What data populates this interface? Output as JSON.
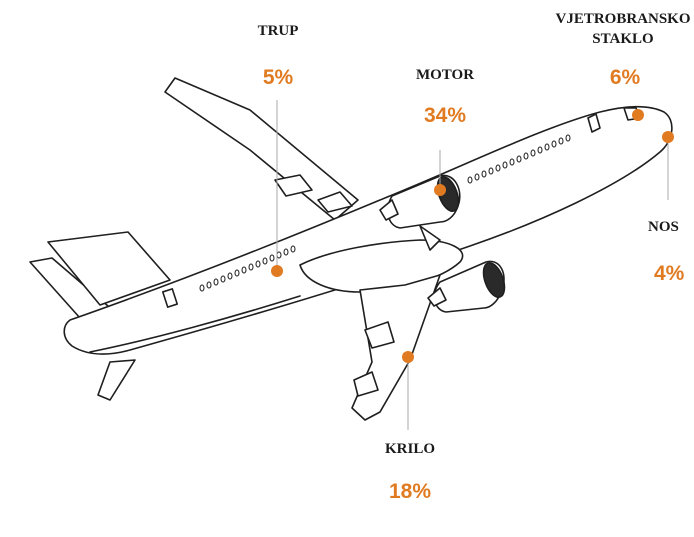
{
  "accent_color": "#e07b22",
  "outline_color": "#1f1f1f",
  "icons": [
    "airplane-outline",
    "orange-dot-marker"
  ],
  "parts": {
    "fuselage": {
      "label": "TRUP",
      "value": "5%"
    },
    "engine": {
      "label": "MOTOR",
      "value": "34%"
    },
    "windshield": {
      "label_line1": "VJETROBRANSKO",
      "label_line2": "STAKLO",
      "value": "6%"
    },
    "nose": {
      "label": "NOS",
      "value": "4%"
    },
    "wing": {
      "label": "KRILO",
      "value": "18%"
    }
  }
}
